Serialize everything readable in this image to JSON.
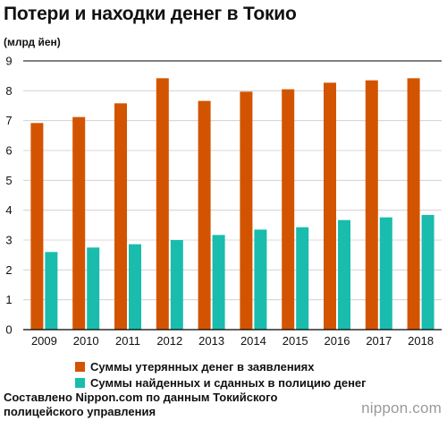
{
  "title": "Потери и находки денег в Токио",
  "unit": "(млрд йен)",
  "source": "Составлено Nippon.com по данным Токийского полицейского управления",
  "brand": "nippon.com",
  "colors": {
    "lost": "#d35400",
    "found": "#1abcad",
    "axis": "#000000",
    "grid": "#cccccc"
  },
  "chart_data": {
    "type": "bar",
    "categories": [
      "2009",
      "2010",
      "2011",
      "2012",
      "2013",
      "2014",
      "2015",
      "2016",
      "2017",
      "2018"
    ],
    "series": [
      {
        "name": "Суммы утерянных денег в заявлениях",
        "values": [
          6.92,
          7.12,
          7.58,
          8.42,
          7.66,
          7.97,
          8.05,
          8.27,
          8.35,
          8.42
        ]
      },
      {
        "name": "Суммы найденных и сданных в полицию денег",
        "values": [
          2.6,
          2.75,
          2.86,
          3.0,
          3.17,
          3.35,
          3.43,
          3.67,
          3.76,
          3.84
        ]
      }
    ],
    "ylim": [
      0,
      9
    ],
    "yticks": [
      0,
      1,
      2,
      3,
      4,
      5,
      6,
      7,
      8,
      9
    ],
    "grid": true,
    "legend": "bottom"
  }
}
